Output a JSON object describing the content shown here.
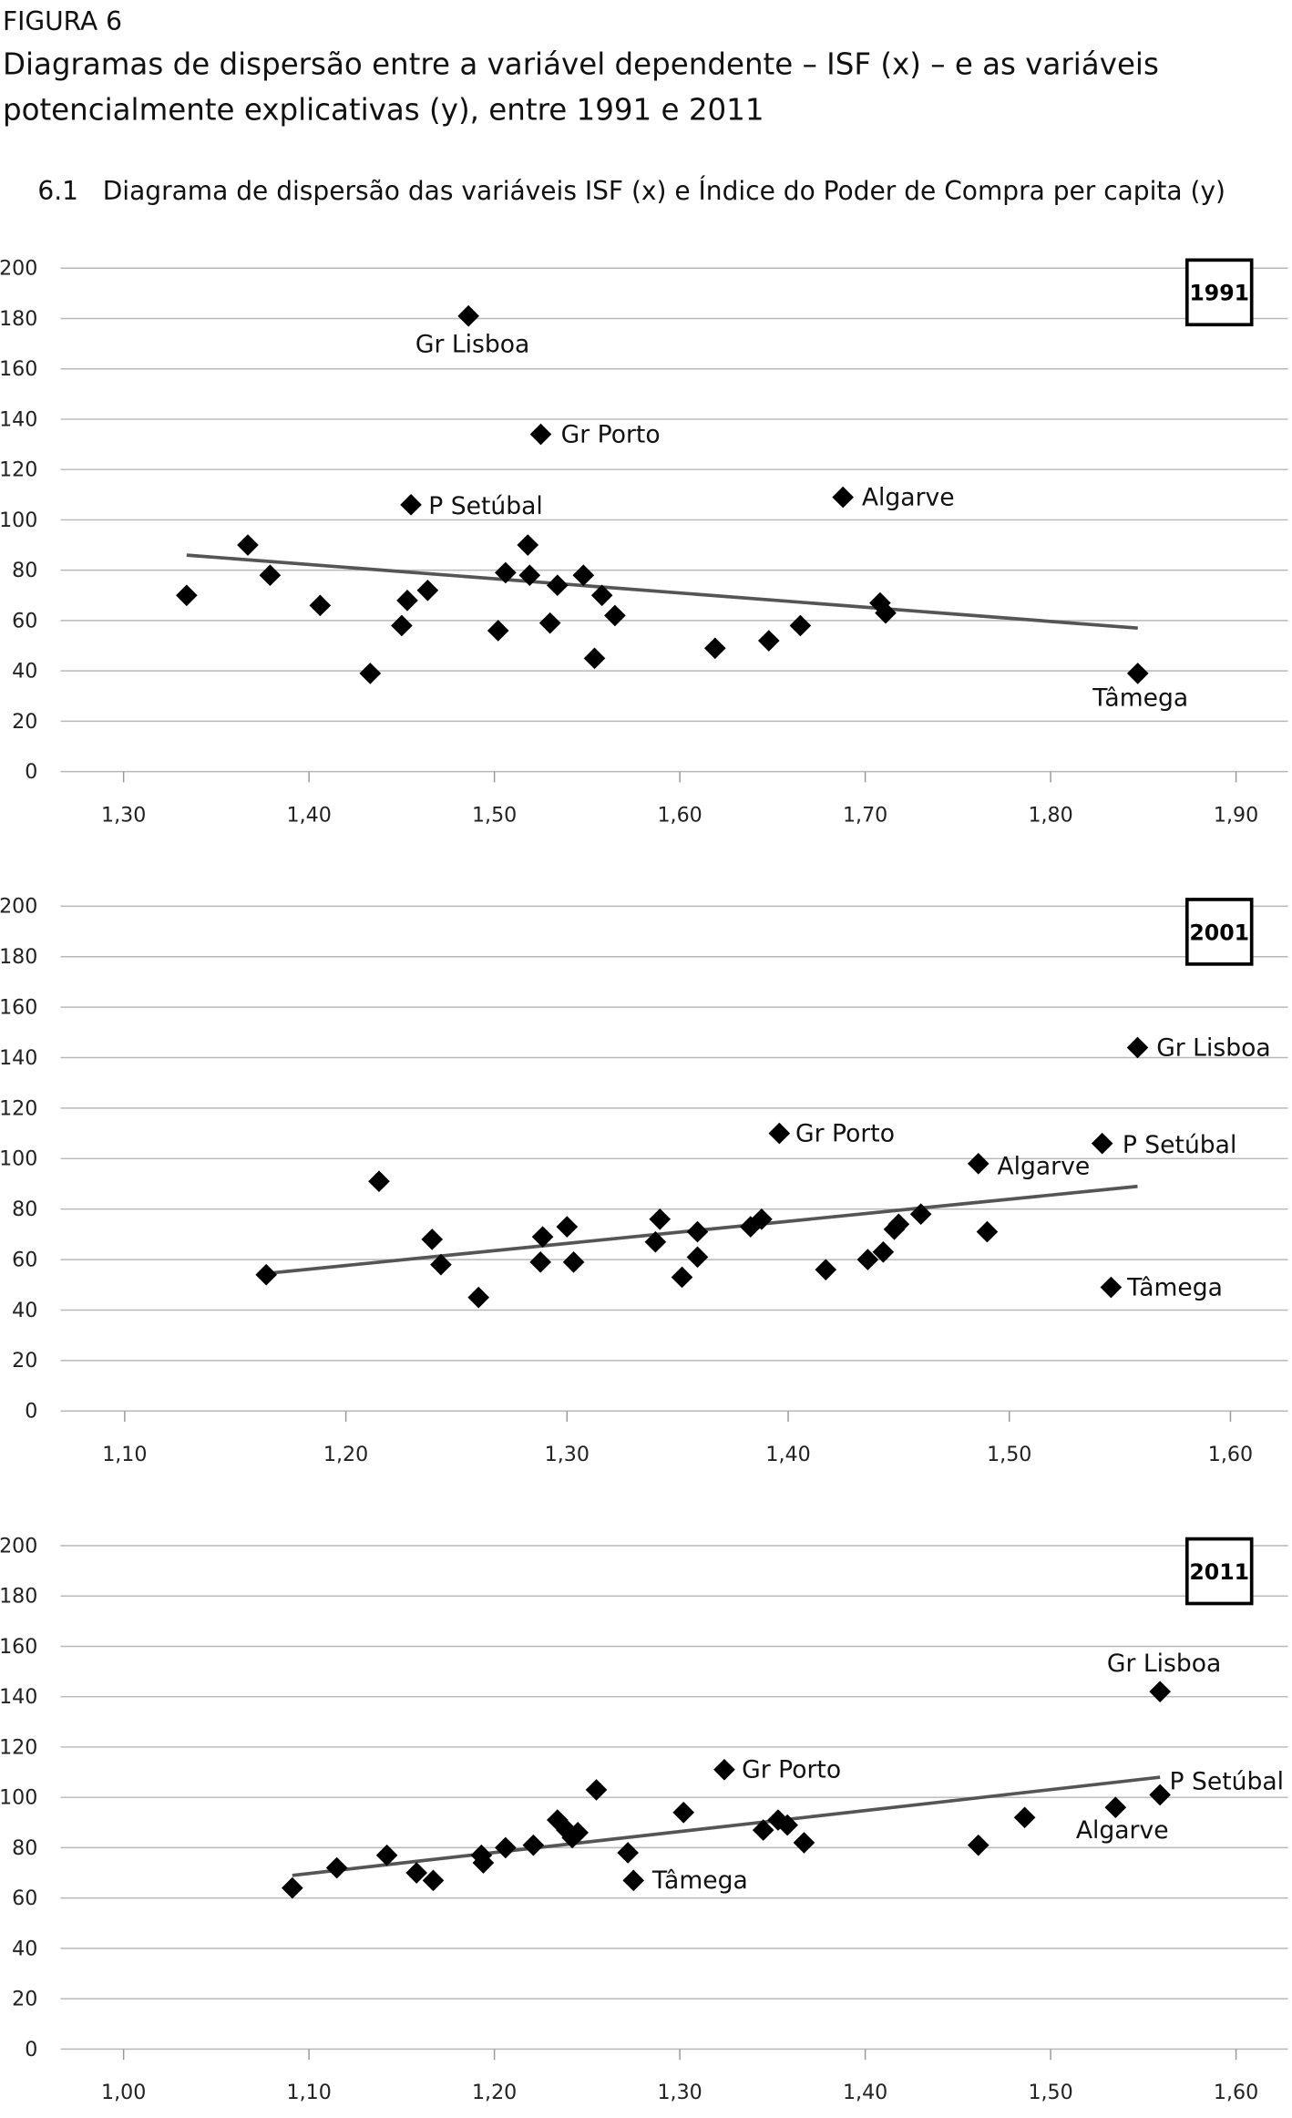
{
  "figure": {
    "label": "FIGURA 6",
    "title_line1": "Diagramas de dispersão entre a variável dependente – ISF (x) – e as variáveis",
    "title_line2": "potencialmente explicativas (y), entre 1991 e 2011",
    "subtitle": "6.1   Diagrama de dispersão das variáveis ISF (x) e Índice do Poder de Compra per capita (y)"
  },
  "chart_data": [
    {
      "type": "scatter",
      "title": "1991",
      "xlabel": "ISF",
      "ylabel": "Índice do Poder de Compra per capita",
      "xlim": [
        1.266,
        1.928
      ],
      "ylim": [
        0,
        200
      ],
      "xticks": [
        1.3,
        1.4,
        1.5,
        1.6,
        1.7,
        1.8,
        1.9
      ],
      "xtick_labels": [
        "1,30",
        "1,40",
        "1,50",
        "1,60",
        "1,70",
        "1,80",
        "1,90"
      ],
      "yticks": [
        0,
        20,
        40,
        60,
        80,
        100,
        120,
        140,
        160,
        180,
        200
      ],
      "ytick_labels": [
        "0",
        "20",
        "40",
        "60",
        "80",
        "100",
        "120",
        "140",
        "160",
        "180",
        "200"
      ],
      "grid": true,
      "trend": [
        [
          1.334,
          86
        ],
        [
          1.847,
          57
        ]
      ],
      "points": [
        {
          "x": 1.334,
          "y": 70
        },
        {
          "x": 1.367,
          "y": 90
        },
        {
          "x": 1.379,
          "y": 78
        },
        {
          "x": 1.406,
          "y": 66
        },
        {
          "x": 1.433,
          "y": 39
        },
        {
          "x": 1.45,
          "y": 58
        },
        {
          "x": 1.453,
          "y": 68
        },
        {
          "x": 1.455,
          "y": 106,
          "label": "P Setúbal"
        },
        {
          "x": 1.464,
          "y": 72
        },
        {
          "x": 1.486,
          "y": 181,
          "label": "Gr Lisboa"
        },
        {
          "x": 1.502,
          "y": 56
        },
        {
          "x": 1.506,
          "y": 79
        },
        {
          "x": 1.518,
          "y": 90
        },
        {
          "x": 1.519,
          "y": 78
        },
        {
          "x": 1.525,
          "y": 134,
          "label": "Gr Porto"
        },
        {
          "x": 1.53,
          "y": 59
        },
        {
          "x": 1.534,
          "y": 74
        },
        {
          "x": 1.548,
          "y": 78
        },
        {
          "x": 1.554,
          "y": 45
        },
        {
          "x": 1.558,
          "y": 70
        },
        {
          "x": 1.565,
          "y": 62
        },
        {
          "x": 1.619,
          "y": 49
        },
        {
          "x": 1.648,
          "y": 52
        },
        {
          "x": 1.665,
          "y": 58
        },
        {
          "x": 1.688,
          "y": 109,
          "label": "Algarve"
        },
        {
          "x": 1.708,
          "y": 67
        },
        {
          "x": 1.711,
          "y": 63
        },
        {
          "x": 1.847,
          "y": 39,
          "label": "Tâmega"
        }
      ]
    },
    {
      "type": "scatter",
      "title": "2001",
      "xlabel": "ISF",
      "ylabel": "Índice do Poder de Compra per capita",
      "xlim": [
        1.071,
        1.626
      ],
      "ylim": [
        0,
        200
      ],
      "xticks": [
        1.1,
        1.2,
        1.3,
        1.4,
        1.5,
        1.6
      ],
      "xtick_labels": [
        "1,10",
        "1,20",
        "1,30",
        "1,40",
        "1,50",
        "1,60"
      ],
      "yticks": [
        0,
        20,
        40,
        60,
        80,
        100,
        120,
        140,
        160,
        180,
        200
      ],
      "ytick_labels": [
        "0",
        "20",
        "40",
        "60",
        "80",
        "100",
        "120",
        "140",
        "160",
        "180",
        "200"
      ],
      "grid": true,
      "trend": [
        [
          1.164,
          54.5
        ],
        [
          1.558,
          89
        ]
      ],
      "points": [
        {
          "x": 1.164,
          "y": 54
        },
        {
          "x": 1.215,
          "y": 91
        },
        {
          "x": 1.239,
          "y": 68
        },
        {
          "x": 1.243,
          "y": 58
        },
        {
          "x": 1.26,
          "y": 45
        },
        {
          "x": 1.289,
          "y": 69
        },
        {
          "x": 1.288,
          "y": 59
        },
        {
          "x": 1.3,
          "y": 73
        },
        {
          "x": 1.303,
          "y": 59
        },
        {
          "x": 1.34,
          "y": 67
        },
        {
          "x": 1.342,
          "y": 76
        },
        {
          "x": 1.352,
          "y": 53
        },
        {
          "x": 1.359,
          "y": 71
        },
        {
          "x": 1.359,
          "y": 61
        },
        {
          "x": 1.383,
          "y": 73
        },
        {
          "x": 1.388,
          "y": 76
        },
        {
          "x": 1.396,
          "y": 110,
          "label": "Gr Porto"
        },
        {
          "x": 1.417,
          "y": 56
        },
        {
          "x": 1.436,
          "y": 60
        },
        {
          "x": 1.443,
          "y": 63
        },
        {
          "x": 1.448,
          "y": 72
        },
        {
          "x": 1.45,
          "y": 74
        },
        {
          "x": 1.46,
          "y": 78
        },
        {
          "x": 1.486,
          "y": 98,
          "label": "Algarve"
        },
        {
          "x": 1.49,
          "y": 71
        },
        {
          "x": 1.542,
          "y": 106,
          "label": "P Setúbal"
        },
        {
          "x": 1.546,
          "y": 49,
          "label": "Tâmega"
        },
        {
          "x": 1.558,
          "y": 144,
          "label": "Gr Lisboa"
        }
      ]
    },
    {
      "type": "scatter",
      "title": "2011",
      "xlabel": "ISF",
      "ylabel": "Índice do Poder de Compra per capita",
      "xlim": [
        0.966,
        1.628
      ],
      "ylim": [
        0,
        200
      ],
      "xticks": [
        1.0,
        1.1,
        1.2,
        1.3,
        1.4,
        1.5,
        1.6
      ],
      "xtick_labels": [
        "1,00",
        "1,10",
        "1,20",
        "1,30",
        "1,40",
        "1,50",
        "1,60"
      ],
      "yticks": [
        0,
        20,
        40,
        60,
        80,
        100,
        120,
        140,
        160,
        180,
        200
      ],
      "ytick_labels": [
        "0",
        "20",
        "40",
        "60",
        "80",
        "100",
        "120",
        "140",
        "160",
        "180",
        "200"
      ],
      "grid": true,
      "trend": [
        [
          1.091,
          69
        ],
        [
          1.559,
          108
        ]
      ],
      "points": [
        {
          "x": 1.091,
          "y": 64
        },
        {
          "x": 1.115,
          "y": 72
        },
        {
          "x": 1.142,
          "y": 77
        },
        {
          "x": 1.158,
          "y": 70
        },
        {
          "x": 1.167,
          "y": 67
        },
        {
          "x": 1.193,
          "y": 77
        },
        {
          "x": 1.194,
          "y": 74
        },
        {
          "x": 1.206,
          "y": 80
        },
        {
          "x": 1.221,
          "y": 81
        },
        {
          "x": 1.234,
          "y": 91
        },
        {
          "x": 1.239,
          "y": 87
        },
        {
          "x": 1.242,
          "y": 84
        },
        {
          "x": 1.245,
          "y": 86
        },
        {
          "x": 1.255,
          "y": 103
        },
        {
          "x": 1.272,
          "y": 78
        },
        {
          "x": 1.275,
          "y": 67,
          "label": "Tâmega"
        },
        {
          "x": 1.302,
          "y": 94
        },
        {
          "x": 1.324,
          "y": 111,
          "label": "Gr Porto"
        },
        {
          "x": 1.345,
          "y": 87
        },
        {
          "x": 1.353,
          "y": 91
        },
        {
          "x": 1.358,
          "y": 89
        },
        {
          "x": 1.367,
          "y": 82
        },
        {
          "x": 1.461,
          "y": 81
        },
        {
          "x": 1.486,
          "y": 92
        },
        {
          "x": 1.535,
          "y": 96,
          "label": "Algarve"
        },
        {
          "x": 1.559,
          "y": 101,
          "label": "P Setúbal"
        },
        {
          "x": 1.559,
          "y": 142,
          "label": "Gr Lisboa"
        }
      ]
    }
  ]
}
